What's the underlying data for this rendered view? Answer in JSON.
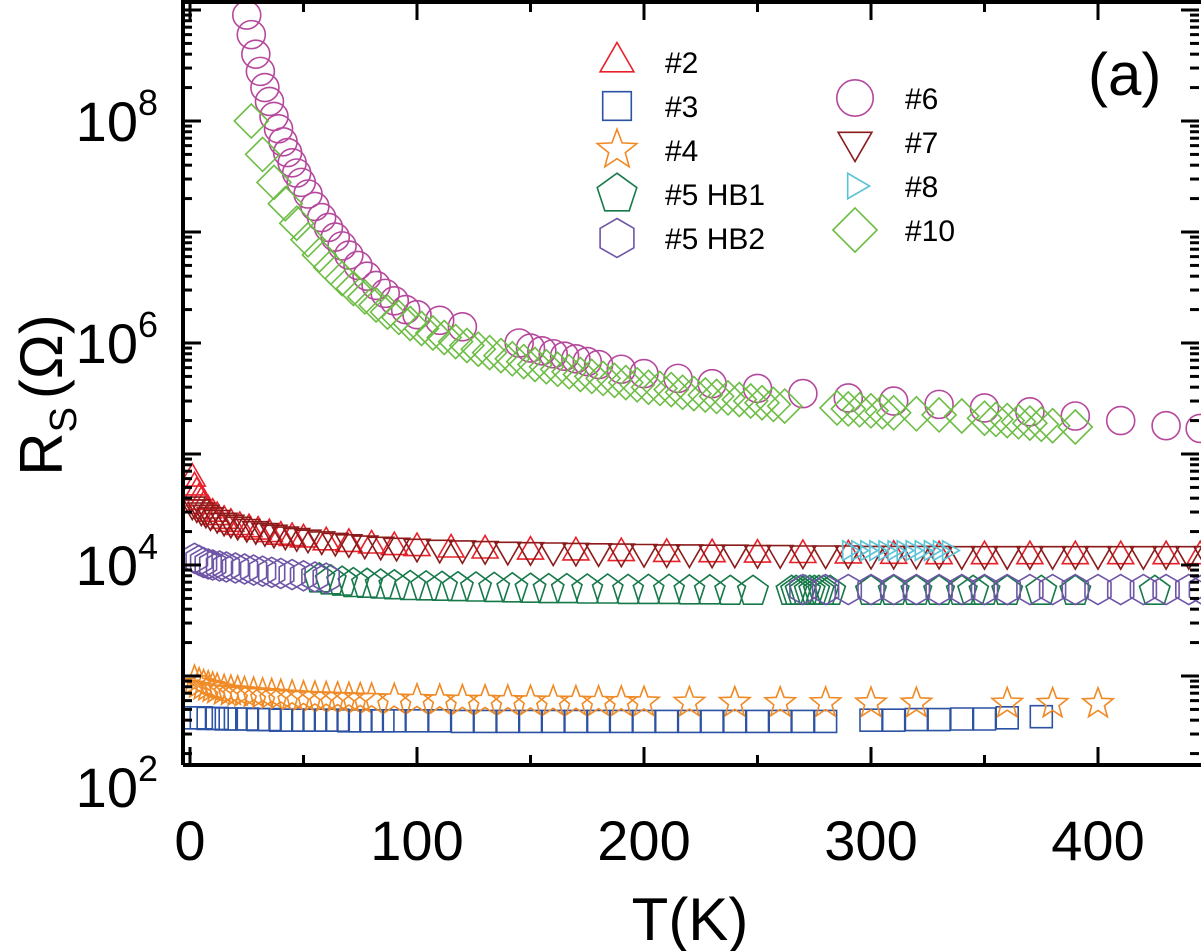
{
  "chart_data": {
    "type": "scatter",
    "title": "",
    "panel_label": "(a)",
    "xlabel": "T(K)",
    "ylabel_main": "R",
    "ylabel_sub": "S",
    "ylabel_unit": "(Ω)",
    "xlim": [
      0,
      450
    ],
    "ylim": [
      100,
      1000000000
    ],
    "yscale": "log",
    "xticks": [
      0,
      100,
      200,
      300,
      400
    ],
    "xtick_labels": [
      "0",
      "100",
      "200",
      "300",
      "400"
    ],
    "yticks": [
      100,
      10000,
      1000000,
      100000000
    ],
    "ytick_labels": [
      {
        "base": "10",
        "exp": "2"
      },
      {
        "base": "10",
        "exp": "4"
      },
      {
        "base": "10",
        "exp": "6"
      },
      {
        "base": "10",
        "exp": "8"
      }
    ],
    "grid": false,
    "legend_position": "top-center",
    "series": [
      {
        "name": "#2",
        "marker": "triangle-up",
        "color": "#e8202a",
        "x": [
          1,
          2,
          3,
          4,
          5,
          6,
          8,
          10,
          12,
          15,
          18,
          22,
          26,
          30,
          35,
          40,
          45,
          50,
          60,
          70,
          80,
          90,
          100,
          115,
          130,
          150,
          170,
          190,
          210,
          230,
          250,
          270,
          290,
          310,
          330,
          350,
          370,
          390,
          410,
          430,
          445
        ],
        "y": [
          60000,
          50000,
          45000,
          40000,
          37000,
          34000,
          31000,
          29000,
          27000,
          25000,
          23500,
          22000,
          21000,
          20000,
          19000,
          18000,
          17500,
          17000,
          16000,
          15500,
          15000,
          14500,
          14200,
          13800,
          13500,
          13200,
          13000,
          12800,
          12600,
          12500,
          12400,
          12300,
          12200,
          12100,
          12000,
          12000,
          12000,
          12000,
          12000,
          12000,
          12000
        ]
      },
      {
        "name": "#3",
        "marker": "square",
        "color": "#2c52a4",
        "x": [
          2,
          5,
          8,
          12,
          16,
          20,
          25,
          30,
          35,
          40,
          45,
          50,
          55,
          60,
          65,
          70,
          75,
          80,
          85,
          90,
          100,
          110,
          120,
          130,
          140,
          150,
          160,
          170,
          180,
          190,
          200,
          210,
          220,
          230,
          240,
          250,
          260,
          270,
          280,
          300,
          310,
          320,
          330,
          340,
          350,
          360,
          375
        ],
        "y": [
          420,
          420,
          415,
          415,
          410,
          410,
          410,
          405,
          405,
          400,
          400,
          400,
          400,
          400,
          400,
          395,
          395,
          395,
          395,
          395,
          395,
          395,
          390,
          390,
          390,
          390,
          390,
          390,
          390,
          390,
          390,
          390,
          390,
          390,
          390,
          390,
          390,
          390,
          390,
          400,
          400,
          405,
          405,
          410,
          410,
          420,
          430
        ]
      },
      {
        "name": "#4",
        "marker": "star",
        "color": "#f08a24",
        "x": [
          2,
          4,
          6,
          8,
          10,
          12,
          15,
          18,
          21,
          24,
          28,
          32,
          36,
          40,
          45,
          50,
          55,
          60,
          65,
          70,
          75,
          80,
          90,
          100,
          110,
          120,
          130,
          140,
          150,
          160,
          170,
          180,
          190,
          200,
          220,
          240,
          260,
          280,
          300,
          320,
          360,
          380,
          400
        ],
        "y": [
          900,
          850,
          820,
          800,
          780,
          760,
          740,
          730,
          720,
          710,
          700,
          690,
          680,
          670,
          660,
          650,
          645,
          640,
          635,
          630,
          625,
          620,
          615,
          610,
          605,
          600,
          598,
          595,
          592,
          590,
          588,
          585,
          583,
          580,
          578,
          576,
          574,
          572,
          570,
          568,
          566,
          564,
          562
        ]
      },
      {
        "name": "#5 HB1",
        "marker": "pentagon",
        "color": "#17794a",
        "x": [
          57,
          62,
          67,
          72,
          78,
          84,
          90,
          97,
          104,
          111,
          118,
          126,
          134,
          142,
          150,
          158,
          166,
          175,
          184,
          193,
          202,
          211,
          220,
          229,
          238,
          248,
          265,
          267,
          269,
          271,
          273,
          275,
          277,
          279,
          282,
          300,
          310,
          320,
          330,
          340,
          345,
          350,
          360,
          375,
          390,
          425
        ],
        "y": [
          7500,
          7200,
          7000,
          6800,
          6700,
          6600,
          6500,
          6400,
          6350,
          6300,
          6250,
          6200,
          6150,
          6100,
          6050,
          6000,
          6000,
          5950,
          5950,
          5900,
          5900,
          5900,
          5850,
          5850,
          5800,
          5800,
          5800,
          5800,
          5800,
          5800,
          5800,
          5800,
          5800,
          5800,
          5800,
          5800,
          5800,
          5800,
          5800,
          5800,
          5800,
          5800,
          5800,
          5800,
          5800,
          5800
        ]
      },
      {
        "name": "#5 HB2",
        "marker": "hexagon",
        "color": "#6e55a6",
        "x": [
          2,
          4,
          6,
          8,
          10,
          13,
          16,
          20,
          24,
          28,
          32,
          36,
          40,
          45,
          50,
          55,
          60,
          270,
          280,
          290,
          300,
          310,
          320,
          330,
          340,
          350,
          360,
          370,
          380,
          390,
          400,
          410,
          420,
          430,
          440,
          446
        ],
        "y": [
          11500,
          11000,
          10500,
          10200,
          10000,
          9800,
          9600,
          9400,
          9200,
          9000,
          8800,
          8600,
          8400,
          8200,
          8000,
          7800,
          7600,
          6000,
          6000,
          6000,
          6000,
          6000,
          6000,
          6000,
          6000,
          6000,
          6000,
          6000,
          6000,
          6000,
          6000,
          6000,
          6000,
          6000,
          6000,
          6000
        ]
      },
      {
        "name": "#6",
        "marker": "circle",
        "color": "#b5489d",
        "x": [
          25,
          27,
          29,
          31,
          33,
          35,
          37,
          39,
          41,
          43,
          45,
          47,
          49,
          52,
          55,
          58,
          61,
          64,
          67,
          70,
          74,
          78,
          82,
          86,
          90,
          95,
          100,
          110,
          120,
          145,
          150,
          155,
          160,
          165,
          170,
          175,
          180,
          190,
          200,
          215,
          230,
          250,
          270,
          290,
          310,
          330,
          350,
          370,
          390,
          410,
          430,
          445
        ],
        "y": [
          900000000,
          600000000,
          400000000,
          280000000,
          200000000,
          150000000,
          110000000,
          85000000,
          65000000,
          52000000,
          42000000,
          34000000,
          28000000,
          22000000,
          17000000,
          13500000,
          11000000,
          9000000,
          7500000,
          6200000,
          5000000,
          4000000,
          3300000,
          2800000,
          2400000,
          2000000,
          1800000,
          1600000,
          1400000,
          1000000,
          900000,
          850000,
          800000,
          760000,
          720000,
          680000,
          640000,
          580000,
          530000,
          480000,
          430000,
          390000,
          350000,
          320000,
          300000,
          280000,
          260000,
          240000,
          220000,
          200000,
          180000,
          170000
        ]
      },
      {
        "name": "#7",
        "marker": "triangle-down",
        "color": "#8b1a1a",
        "x": [
          1,
          3,
          5,
          7,
          9,
          12,
          15,
          18,
          21,
          25,
          29,
          33,
          37,
          42,
          47,
          52,
          58,
          64,
          70,
          77,
          84,
          91,
          100,
          110,
          120,
          130,
          140,
          150,
          160,
          170,
          180,
          190,
          200,
          210,
          220,
          230,
          240,
          250,
          260,
          270,
          280,
          290,
          300,
          310,
          320,
          330,
          340,
          350,
          360,
          370,
          380,
          390,
          400,
          410,
          420,
          430,
          440,
          448
        ],
        "y": [
          35000,
          33000,
          31000,
          29500,
          28000,
          26500,
          25000,
          24000,
          23000,
          22000,
          21000,
          20200,
          19500,
          18800,
          18200,
          17600,
          17000,
          16500,
          16000,
          15600,
          15200,
          14900,
          14600,
          14300,
          14100,
          13900,
          13700,
          13600,
          13500,
          13400,
          13300,
          13200,
          13100,
          13000,
          13000,
          12900,
          12900,
          12800,
          12800,
          12700,
          12700,
          12700,
          12600,
          12600,
          12600,
          12600,
          12500,
          12500,
          12500,
          12500,
          12500,
          12500,
          12500,
          12500,
          12500,
          12500,
          12500,
          12500
        ]
      },
      {
        "name": "#8",
        "marker": "triangle-right",
        "color": "#5ac3d6",
        "x": [
          290,
          294,
          298,
          302,
          306,
          310,
          314,
          318,
          322,
          326,
          330,
          334
        ],
        "y": [
          13500,
          13500,
          13500,
          13500,
          13500,
          13500,
          13500,
          13500,
          13500,
          13500,
          13500,
          13500
        ]
      },
      {
        "name": "#10",
        "marker": "diamond",
        "color": "#6dbd45",
        "x": [
          27,
          32,
          37,
          42,
          47,
          52,
          57,
          62,
          67,
          72,
          77,
          82,
          87,
          92,
          97,
          102,
          107,
          112,
          117,
          122,
          127,
          132,
          137,
          142,
          147,
          152,
          157,
          162,
          167,
          172,
          177,
          182,
          187,
          192,
          197,
          202,
          207,
          212,
          217,
          222,
          227,
          232,
          237,
          242,
          247,
          252,
          257,
          262,
          285,
          290,
          295,
          300,
          305,
          310,
          320,
          330,
          340,
          350,
          355,
          360,
          365,
          370,
          375,
          380,
          390
        ],
        "y": [
          100000000,
          50000000,
          28000000,
          18000000,
          12000000,
          8500000,
          6200000,
          4800000,
          3800000,
          3100000,
          2600000,
          2200000,
          1900000,
          1700000,
          1500000,
          1350000,
          1230000,
          1120000,
          1030000,
          950000,
          880000,
          820000,
          770000,
          720000,
          680000,
          640000,
          610000,
          580000,
          550000,
          520000,
          500000,
          480000,
          460000,
          440000,
          420000,
          400000,
          390000,
          380000,
          360000,
          350000,
          340000,
          330000,
          320000,
          310000,
          300000,
          290000,
          280000,
          270000,
          260000,
          255000,
          250000,
          245000,
          240000,
          235000,
          230000,
          225000,
          220000,
          210000,
          205000,
          200000,
          195000,
          190000,
          185000,
          180000,
          175000
        ]
      }
    ]
  }
}
